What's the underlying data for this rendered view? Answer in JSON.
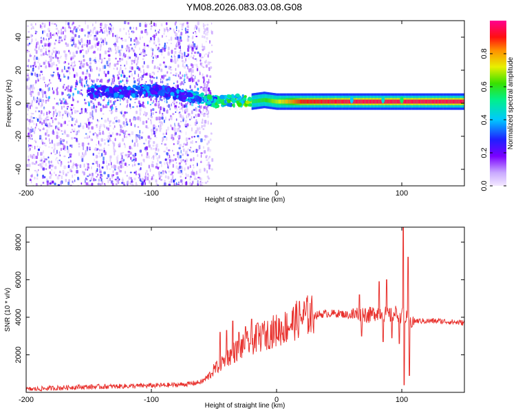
{
  "title": "YM08.2026.083.03.08.G08",
  "chart_data": [
    {
      "type": "heatmap",
      "xlabel": "Height of straight line (km)",
      "ylabel": "Frequency (Hz)",
      "xlim": [
        -200,
        150
      ],
      "ylim": [
        -50,
        50
      ],
      "xticks": [
        -200,
        -100,
        0,
        100
      ],
      "yticks": [
        -40,
        -20,
        0,
        20,
        40
      ],
      "xtick_labels": [
        "-200",
        "-100",
        "0",
        "100"
      ],
      "ytick_labels": [
        "-40",
        "-20",
        "0",
        "20",
        "40"
      ],
      "colorbar": {
        "label": "Normalized spectral amplitude",
        "range": [
          0,
          1
        ],
        "ticks": [
          0.0,
          0.2,
          0.4,
          0.6,
          0.8
        ],
        "tick_labels": [
          "0.0",
          "0.2",
          "0.4",
          "0.6",
          "0.8"
        ],
        "colormap": "rainbow",
        "low_color": "#f3e9ff",
        "high_color": "#ff0088"
      },
      "ridge": {
        "x": [
          -150,
          -120,
          -100,
          -80,
          -70,
          -60,
          -50,
          -40,
          -30,
          -20,
          -10,
          0,
          20,
          60,
          100,
          150
        ],
        "y": [
          7,
          7,
          8,
          6,
          4,
          3,
          1,
          1,
          2,
          1,
          2,
          1,
          1,
          1,
          1,
          1
        ],
        "amplitude": [
          0.3,
          0.3,
          0.3,
          0.3,
          0.35,
          0.4,
          0.45,
          0.5,
          0.5,
          0.55,
          0.6,
          0.7,
          0.9,
          0.95,
          0.95,
          0.95
        ]
      },
      "noise_extent_x": [
        -200,
        -60
      ]
    },
    {
      "type": "line",
      "xlabel": "Height of straight line (km)",
      "ylabel": "SNR (10 * v/v)",
      "xlim": [
        -200,
        150
      ],
      "ylim": [
        0,
        8800
      ],
      "xticks": [
        -200,
        -100,
        0,
        100
      ],
      "yticks": [
        2000,
        4000,
        6000,
        8000
      ],
      "xtick_labels": [
        "-200",
        "-100",
        "0",
        "100"
      ],
      "ytick_labels": [
        "2000",
        "4000",
        "6000",
        "8000"
      ],
      "color": "#e8302c",
      "series": [
        {
          "x": [
            -200,
            -180,
            -160,
            -140,
            -120,
            -100,
            -80,
            -70,
            -60,
            -55,
            -50,
            -45,
            -40,
            -35,
            -30,
            -25,
            -20,
            -15,
            -10,
            -5,
            0,
            5,
            10,
            15,
            20,
            25,
            30,
            40,
            50,
            60,
            65,
            70,
            75,
            80,
            85,
            90,
            95,
            100,
            102,
            104,
            106,
            110,
            120,
            130,
            140,
            150
          ],
          "y": [
            150,
            220,
            280,
            300,
            330,
            360,
            400,
            450,
            550,
            800,
            1200,
            1500,
            1800,
            2100,
            2300,
            2500,
            2700,
            2900,
            3000,
            3200,
            3300,
            3400,
            3600,
            3800,
            4000,
            4100,
            4100,
            4200,
            4200,
            4100,
            4200,
            4200,
            4100,
            4300,
            4200,
            4100,
            4200,
            4100,
            4000,
            3900,
            3800,
            3800,
            3800,
            3800,
            3750,
            3700
          ]
        }
      ],
      "spikes": [
        {
          "x": -45,
          "y": 3200
        },
        {
          "x": -40,
          "y": 3300
        },
        {
          "x": -35,
          "y": 3800
        },
        {
          "x": -30,
          "y": 3200
        },
        {
          "x": -25,
          "y": 3500
        },
        {
          "x": -20,
          "y": 3900
        },
        {
          "x": -15,
          "y": 3700
        },
        {
          "x": -10,
          "y": 3600
        },
        {
          "x": 66,
          "y": 5200
        },
        {
          "x": 68,
          "y": 3000
        },
        {
          "x": 82,
          "y": 5900
        },
        {
          "x": 85,
          "y": 2700
        },
        {
          "x": 88,
          "y": 6000
        },
        {
          "x": 92,
          "y": 2900
        },
        {
          "x": 98,
          "y": 2600
        },
        {
          "x": 101,
          "y": 8800
        },
        {
          "x": 102,
          "y": 400
        },
        {
          "x": 105,
          "y": 7200
        },
        {
          "x": 106,
          "y": 900
        }
      ]
    }
  ]
}
